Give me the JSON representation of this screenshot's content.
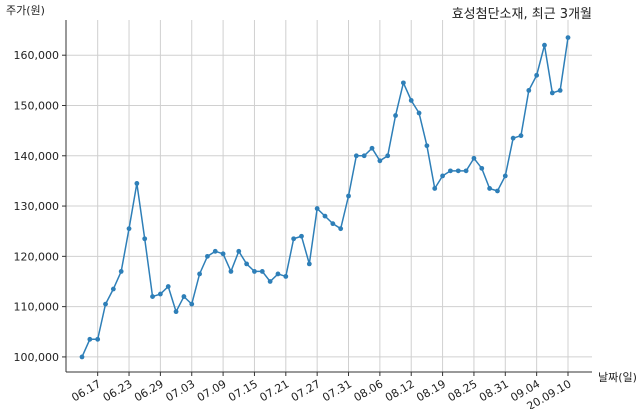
{
  "chart_data": {
    "type": "line",
    "title": "효성첨단소재, 최근 3개월",
    "ylabel": "주가(원)",
    "xlabel": "날짜(일)",
    "ylim": [
      97000,
      167000
    ],
    "yticks": [
      100000,
      110000,
      120000,
      130000,
      140000,
      150000,
      160000
    ],
    "ytick_labels": [
      "100,000",
      "110,000",
      "120,000",
      "130,000",
      "140,000",
      "150,000",
      "160,000"
    ],
    "xtick_labels": [
      "06.17",
      "06.23",
      "06.29",
      "07.03",
      "07.09",
      "07.15",
      "07.21",
      "07.27",
      "07.31",
      "08.06",
      "08.12",
      "08.19",
      "08.25",
      "08.31",
      "09.04",
      "20.09.10"
    ],
    "xtick_index": [
      2,
      6,
      10,
      14,
      18,
      22,
      26,
      30,
      34,
      38,
      42,
      46,
      50,
      54,
      58,
      62
    ],
    "grid": true,
    "color": "#2e7fb8",
    "series": [
      {
        "values": [
          100000,
          103500,
          103500,
          110500,
          113500,
          117000,
          125500,
          134500,
          123500,
          112000,
          112500,
          114000,
          109000,
          112000,
          110500,
          116500,
          120000,
          121000,
          120500,
          117000,
          121000,
          118500,
          117000,
          117000,
          115000,
          116500,
          116000,
          123500,
          124000,
          118500,
          129500,
          128000,
          126500,
          125500,
          132000,
          140000,
          140000,
          141500,
          139000,
          140000,
          148000,
          154500,
          151000,
          148500,
          142000,
          133500,
          136000,
          137000,
          137000,
          137000,
          139500,
          137500,
          133500,
          133000,
          136000,
          143500,
          144000,
          153000,
          156000,
          162000,
          152500,
          153000,
          163500
        ]
      }
    ]
  }
}
